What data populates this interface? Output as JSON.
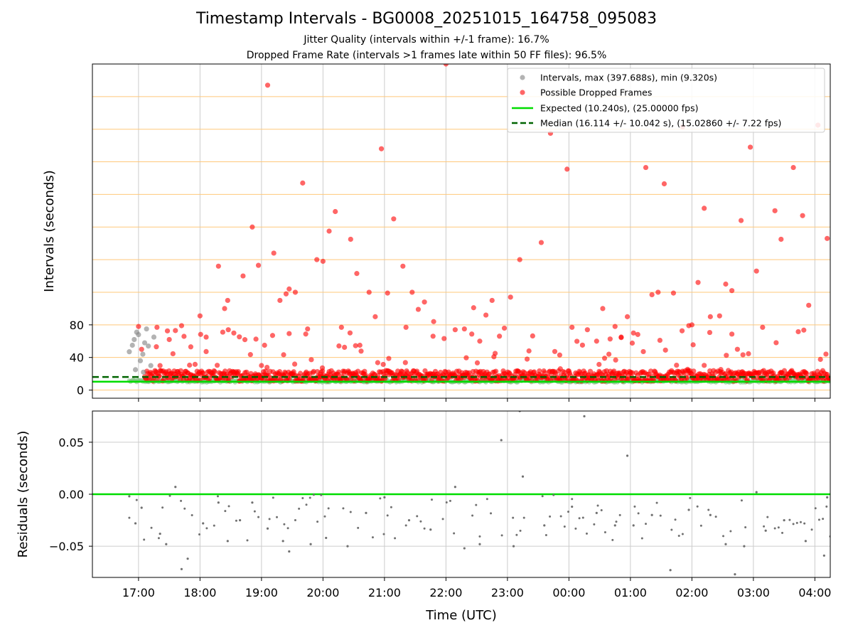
{
  "chart_data": [
    {
      "type": "scatter",
      "title": "Timestamp Intervals - BG0008_20251015_164758_095083",
      "subtitle_lines": [
        "Jitter Quality (intervals within +/-1 frame): 16.7%",
        "Dropped Frame Rate (intervals >1 frames late within 50 FF files): 96.5%"
      ],
      "ylabel": "Intervals (seconds)",
      "x_range_hours": [
        16.25,
        28.25
      ],
      "ylim": [
        -10,
        400
      ],
      "yticks": [
        0,
        40,
        80
      ],
      "reference_lines": [
        0,
        40,
        80,
        120,
        160,
        200,
        240,
        280,
        320,
        360,
        400
      ],
      "expected_interval": 10.24,
      "median_interval": 16.114,
      "grid": true,
      "legend_position": "upper right",
      "legend": [
        "Intervals, max (397.688s), min (9.320s)",
        "Possible Dropped Frames",
        "Expected (10.240s), (25.00000 fps)",
        "Median (16.114 +/- 10.042 s), (15.02860 +/- 7.22 fps)"
      ],
      "colors": {
        "normal": "#808080",
        "dropped": "#ff0000",
        "expected": "#00dd00",
        "median": "#006400",
        "reference": "#ffc87a",
        "grid": "#cccccc"
      },
      "series": [
        {
          "name": "Possible Dropped Frames (notable outliers)",
          "points": [
            [
              17.0,
              78
            ],
            [
              17.05,
              50
            ],
            [
              17.3,
              77
            ],
            [
              17.35,
              30
            ],
            [
              17.5,
              62
            ],
            [
              17.6,
              73
            ],
            [
              17.7,
              79
            ],
            [
              17.85,
              53
            ],
            [
              18.0,
              91
            ],
            [
              18.1,
              65
            ],
            [
              18.3,
              152
            ],
            [
              18.4,
              100
            ],
            [
              18.45,
              110
            ],
            [
              18.55,
              70
            ],
            [
              18.7,
              140
            ],
            [
              18.85,
              200
            ],
            [
              18.95,
              153
            ],
            [
              19.05,
              55
            ],
            [
              19.1,
              374
            ],
            [
              19.2,
              168
            ],
            [
              19.3,
              110
            ],
            [
              19.4,
              118
            ],
            [
              19.45,
              124
            ],
            [
              19.55,
              120
            ],
            [
              19.67,
              254
            ],
            [
              19.75,
              75
            ],
            [
              19.9,
              160
            ],
            [
              20.0,
              158
            ],
            [
              20.1,
              195
            ],
            [
              20.2,
              219
            ],
            [
              20.3,
              77
            ],
            [
              20.45,
              185
            ],
            [
              20.55,
              143
            ],
            [
              20.6,
              55
            ],
            [
              20.75,
              120
            ],
            [
              20.85,
              90
            ],
            [
              20.95,
              296
            ],
            [
              21.05,
              119
            ],
            [
              21.15,
              210
            ],
            [
              21.3,
              152
            ],
            [
              21.35,
              77
            ],
            [
              21.45,
              120
            ],
            [
              21.55,
              99
            ],
            [
              21.65,
              108
            ],
            [
              21.8,
              84
            ],
            [
              22.0,
              400
            ],
            [
              22.15,
              74
            ],
            [
              22.3,
              75
            ],
            [
              22.45,
              101
            ],
            [
              22.55,
              60
            ],
            [
              22.65,
              92
            ],
            [
              22.75,
              110
            ],
            [
              22.8,
              45
            ],
            [
              22.95,
              76
            ],
            [
              23.05,
              114
            ],
            [
              23.2,
              160
            ],
            [
              23.35,
              48
            ],
            [
              23.55,
              181
            ],
            [
              23.7,
              315
            ],
            [
              23.85,
              43
            ],
            [
              23.97,
              271
            ],
            [
              24.05,
              77
            ],
            [
              24.3,
              74
            ],
            [
              24.45,
              60
            ],
            [
              24.55,
              100
            ],
            [
              24.65,
              44
            ],
            [
              24.75,
              78
            ],
            [
              24.85,
              65
            ],
            [
              24.95,
              90
            ],
            [
              25.05,
              70
            ],
            [
              25.25,
              273
            ],
            [
              25.35,
              117
            ],
            [
              25.45,
              120
            ],
            [
              25.55,
              253
            ],
            [
              25.7,
              119
            ],
            [
              25.85,
              323
            ],
            [
              25.95,
              79
            ],
            [
              26.0,
              80
            ],
            [
              26.1,
              132
            ],
            [
              26.2,
              223
            ],
            [
              26.3,
              90
            ],
            [
              26.45,
              91
            ],
            [
              26.55,
              130
            ],
            [
              26.65,
              122
            ],
            [
              26.8,
              208
            ],
            [
              26.95,
              298
            ],
            [
              27.05,
              146
            ],
            [
              27.15,
              77
            ],
            [
              27.35,
              220
            ],
            [
              27.45,
              185
            ],
            [
              27.65,
              273
            ],
            [
              27.8,
              214
            ],
            [
              27.9,
              104
            ],
            [
              28.05,
              325
            ],
            [
              28.2,
              186
            ]
          ]
        },
        {
          "name": "Intervals (early gray cluster)",
          "points": [
            [
              16.85,
              47
            ],
            [
              16.9,
              55
            ],
            [
              16.93,
              62
            ],
            [
              16.97,
              71
            ],
            [
              17.0,
              68
            ],
            [
              17.03,
              36
            ],
            [
              17.07,
              44
            ],
            [
              17.1,
              58
            ],
            [
              17.13,
              75
            ],
            [
              17.16,
              54
            ],
            [
              17.2,
              30
            ],
            [
              17.25,
              65
            ],
            [
              16.95,
              25
            ],
            [
              17.08,
              22
            ]
          ]
        }
      ]
    },
    {
      "type": "scatter",
      "ylabel": "Residuals (seconds)",
      "xlabel": "Time (UTC)",
      "x_range_hours": [
        16.25,
        28.25
      ],
      "ylim": [
        -0.08,
        0.08
      ],
      "yticks": [
        0.05,
        0.0,
        -0.05
      ],
      "ytick_labels": [
        "0.05",
        "0.00",
        "−0.05"
      ],
      "xticks_hours": [
        17,
        18,
        19,
        20,
        21,
        22,
        23,
        24,
        25,
        26,
        27,
        28
      ],
      "xtick_labels": [
        "17:00",
        "18:00",
        "19:00",
        "20:00",
        "21:00",
        "22:00",
        "23:00",
        "00:00",
        "01:00",
        "02:00",
        "03:00",
        "04:00"
      ],
      "zero_line": 0.0,
      "grid": true,
      "series": [
        {
          "name": "Residuals (notable points)",
          "points": [
            [
              16.85,
              -0.002
            ],
            [
              16.95,
              -0.028
            ],
            [
              17.05,
              -0.013
            ],
            [
              17.35,
              -0.038
            ],
            [
              17.45,
              -0.048
            ],
            [
              17.6,
              0.007
            ],
            [
              17.7,
              -0.072
            ],
            [
              17.8,
              -0.062
            ],
            [
              18.05,
              -0.028
            ],
            [
              18.3,
              -0.008
            ],
            [
              18.45,
              -0.045
            ],
            [
              18.65,
              -0.025
            ],
            [
              18.85,
              -0.008
            ],
            [
              19.1,
              -0.033
            ],
            [
              19.35,
              -0.045
            ],
            [
              19.45,
              -0.055
            ],
            [
              19.8,
              -0.048
            ],
            [
              20.05,
              -0.042
            ],
            [
              20.4,
              -0.05
            ],
            [
              20.7,
              -0.018
            ],
            [
              21.0,
              -0.003
            ],
            [
              21.4,
              -0.025
            ],
            [
              21.75,
              -0.034
            ],
            [
              22.15,
              0.007
            ],
            [
              22.3,
              -0.052
            ],
            [
              22.55,
              -0.048
            ],
            [
              22.9,
              0.052
            ],
            [
              23.1,
              -0.05
            ],
            [
              23.25,
              0.017
            ],
            [
              23.2,
              0.08
            ],
            [
              23.6,
              -0.03
            ],
            [
              24.05,
              -0.012
            ],
            [
              24.25,
              0.075
            ],
            [
              24.45,
              -0.018
            ],
            [
              24.75,
              -0.03
            ],
            [
              24.95,
              0.037
            ],
            [
              25.05,
              -0.03
            ],
            [
              25.35,
              -0.02
            ],
            [
              25.65,
              -0.073
            ],
            [
              25.95,
              -0.015
            ],
            [
              26.3,
              -0.02
            ],
            [
              26.55,
              -0.048
            ],
            [
              26.7,
              -0.077
            ],
            [
              26.85,
              -0.05
            ],
            [
              27.05,
              0.002
            ],
            [
              27.2,
              -0.035
            ],
            [
              27.5,
              -0.025
            ],
            [
              27.85,
              -0.045
            ],
            [
              28.15,
              -0.059
            ],
            [
              28.2,
              -0.003
            ]
          ]
        }
      ]
    }
  ]
}
